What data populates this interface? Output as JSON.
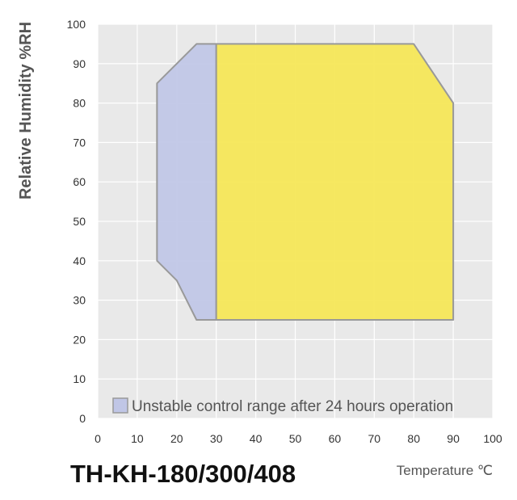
{
  "chart_data": {
    "type": "area",
    "title": "TH-KH-180/300/408",
    "xlabel": "Temperature ℃",
    "ylabel": "Relative Humidity %RH",
    "xlim": [
      0,
      100
    ],
    "ylim": [
      0,
      100
    ],
    "xticks": [
      0,
      10,
      20,
      30,
      40,
      50,
      60,
      70,
      80,
      90,
      100
    ],
    "yticks": [
      0,
      10,
      20,
      30,
      40,
      50,
      60,
      70,
      80,
      90,
      100
    ],
    "grid": true,
    "legend": {
      "placement": "bottom",
      "entry": "Unstable control range after 24 hours operation"
    },
    "series": [
      {
        "name": "Unstable control range after 24 hours operation",
        "color": "#c0c6e6",
        "points": [
          [
            15,
            40
          ],
          [
            20,
            35
          ],
          [
            25,
            25
          ],
          [
            30,
            25
          ],
          [
            30,
            95
          ],
          [
            25,
            95
          ],
          [
            15,
            85
          ]
        ]
      },
      {
        "color": "#f5e655",
        "points": [
          [
            30,
            25
          ],
          [
            90,
            25
          ],
          [
            90,
            80
          ],
          [
            80,
            95
          ],
          [
            30,
            95
          ]
        ]
      }
    ],
    "colors": {
      "plot_background": "#e9e9e9",
      "grid": "#ffffff",
      "outline": "#999999"
    }
  }
}
